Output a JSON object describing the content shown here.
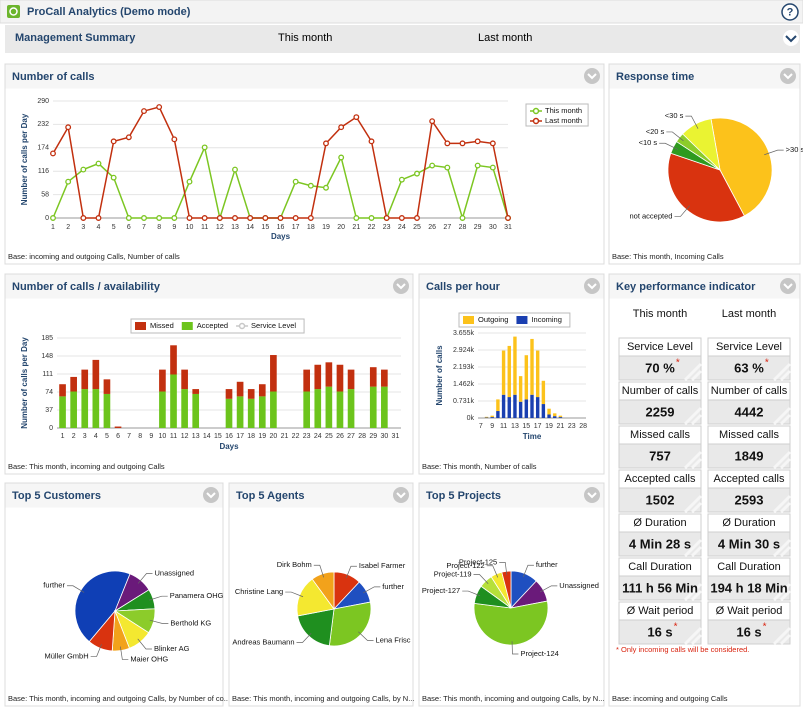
{
  "header": {
    "title": "ProCall Analytics (Demo mode)",
    "help": "?"
  },
  "nav": {
    "title": "Management Summary",
    "tabs": [
      "This month",
      "Last month"
    ]
  },
  "charts": [
    {
      "type": "line",
      "title": "Number of calls",
      "y_label": "Number of calls per Day",
      "x_label": "Days",
      "footnote": "Base: incoming and outgoing Calls, Number of calls",
      "categories": [
        "1",
        "2",
        "3",
        "4",
        "5",
        "6",
        "7",
        "8",
        "9",
        "10",
        "11",
        "12",
        "13",
        "14",
        "15",
        "16",
        "17",
        "18",
        "19",
        "20",
        "21",
        "22",
        "23",
        "24",
        "25",
        "26",
        "27",
        "28",
        "29",
        "30",
        "31"
      ],
      "ylim": [
        0,
        290
      ],
      "yticks": [
        0,
        58,
        116,
        174,
        232,
        290
      ],
      "grid": true,
      "series": [
        {
          "name": "This month",
          "color": "#7cc622",
          "values": [
            0,
            90,
            120,
            135,
            100,
            0,
            0,
            0,
            0,
            90,
            175,
            0,
            120,
            0,
            0,
            0,
            90,
            80,
            75,
            150,
            0,
            0,
            0,
            95,
            110,
            130,
            125,
            0,
            130,
            125,
            0
          ]
        },
        {
          "name": "Last month",
          "color": "#c2300f",
          "values": [
            160,
            225,
            0,
            0,
            190,
            200,
            265,
            275,
            195,
            0,
            0,
            0,
            0,
            0,
            0,
            0,
            0,
            0,
            185,
            225,
            250,
            190,
            0,
            0,
            0,
            240,
            185,
            185,
            190,
            185,
            0
          ]
        }
      ]
    },
    {
      "type": "pie",
      "title": "Response time",
      "footnote": "Base: This month, Incoming Calls",
      "categories": [
        ">30 s",
        "not accepted",
        "<10 s",
        "<20 s",
        "<30 s"
      ],
      "values": [
        45,
        38,
        4,
        3,
        10
      ],
      "colors": [
        "#fcc21b",
        "#d9330f",
        "#2e9a1f",
        "#8ccc2a",
        "#eaf332"
      ]
    },
    {
      "type": "bar",
      "title": "Number of calls / availability",
      "y_label": "Number of calls per Day",
      "x_label": "Days",
      "footnote": "Base: This month, incoming and outgoing Calls",
      "categories": [
        "1",
        "2",
        "3",
        "4",
        "5",
        "6",
        "7",
        "8",
        "9",
        "10",
        "11",
        "12",
        "13",
        "14",
        "15",
        "16",
        "17",
        "18",
        "19",
        "20",
        "21",
        "22",
        "23",
        "24",
        "25",
        "26",
        "27",
        "28",
        "29",
        "30",
        "31"
      ],
      "ylim": [
        0,
        185
      ],
      "yticks": [
        0,
        37,
        74,
        111,
        148,
        185
      ],
      "grid": true,
      "series": [
        {
          "name": "Missed",
          "color": "#c2300f",
          "values": [
            25,
            30,
            40,
            60,
            30,
            3,
            0,
            0,
            0,
            45,
            60,
            40,
            10,
            0,
            0,
            20,
            30,
            20,
            25,
            75,
            0,
            0,
            45,
            50,
            50,
            55,
            40,
            0,
            40,
            35,
            0
          ]
        },
        {
          "name": "Accepted",
          "color": "#6cc41c",
          "values": [
            65,
            75,
            80,
            80,
            70,
            0,
            0,
            0,
            0,
            75,
            110,
            80,
            70,
            0,
            0,
            60,
            65,
            60,
            65,
            75,
            0,
            0,
            75,
            80,
            85,
            75,
            80,
            0,
            85,
            85,
            0
          ]
        },
        {
          "name": "Service Level",
          "color": "#c8c8c8",
          "type": "line",
          "values": [
            null,
            null,
            null,
            null,
            null,
            null,
            null,
            null,
            null,
            null,
            null,
            null,
            null,
            null,
            null,
            null,
            null,
            null,
            null,
            null,
            null,
            null,
            null,
            null,
            null,
            null,
            null,
            null,
            null,
            null,
            null
          ]
        }
      ]
    },
    {
      "type": "bar",
      "title": "Calls per hour",
      "y_label": "Number of calls",
      "x_label": "Time",
      "footnote": "Base: This month, Number of calls",
      "categories": [
        "7",
        null,
        "9",
        null,
        "11",
        null,
        "13",
        null,
        "15",
        null,
        "17",
        null,
        "19",
        null,
        "21",
        null,
        "23",
        null,
        "28"
      ],
      "ylim": [
        0,
        3655
      ],
      "yticks": [
        {
          "value": 0,
          "label": "0k"
        },
        {
          "value": 731,
          "label": "0.731k"
        },
        {
          "value": 1462,
          "label": "1.462k"
        },
        {
          "value": 2193,
          "label": "2.193k"
        },
        {
          "value": 2924,
          "label": "2.924k"
        },
        {
          "value": 3655,
          "label": "3.655k"
        }
      ],
      "grid": true,
      "series": [
        {
          "name": "Outgoing",
          "color": "#fcc21b",
          "values": [
            0,
            30,
            60,
            500,
            1900,
            2200,
            2500,
            1100,
            1900,
            2400,
            2000,
            1000,
            250,
            120,
            60,
            0,
            0,
            0,
            0
          ]
        },
        {
          "name": "Incoming",
          "color": "#1a3fb0",
          "values": [
            0,
            20,
            40,
            300,
            1000,
            900,
            1000,
            700,
            800,
            1000,
            900,
            600,
            150,
            80,
            40,
            0,
            0,
            0,
            0
          ]
        }
      ]
    },
    {
      "type": "pie",
      "title": "Top 5 Customers",
      "footnote": "Base: This month, incoming and outgoing Calls, by Number of co...",
      "categories": [
        "further",
        "Unassigned",
        "Panamera OHG",
        "Berthold KG",
        "Blinker AG",
        "Maier OHG",
        "Müller GmbH"
      ],
      "values": [
        45,
        10,
        8,
        10,
        10,
        7,
        10
      ],
      "colors": [
        "#0f3fb5",
        "#6a1a7a",
        "#1f8f1f",
        "#8ccc2a",
        "#f4e830",
        "#f2a21b",
        "#d9330f"
      ]
    },
    {
      "type": "pie",
      "title": "Top 5 Agents",
      "footnote": "Base: This month, incoming and outgoing Calls, by N...",
      "categories": [
        "Isabel Farmer",
        "further",
        "Lena Frisc",
        "Andreas Baumann",
        "Christine Lang",
        "Dirk Bohm"
      ],
      "values": [
        12,
        10,
        30,
        20,
        18,
        10
      ],
      "colors": [
        "#d9330f",
        "#1f4fc0",
        "#7cc622",
        "#1f8f1f",
        "#f4e830",
        "#f2a21b"
      ]
    },
    {
      "type": "pie",
      "title": "Top 5 Projects",
      "footnote": "Base: This month, incoming and outgoing Calls, by N...",
      "categories": [
        "further",
        "Unassigned",
        "Project-124",
        "Project-127",
        "Project-119",
        "Project-122",
        "Project-125"
      ],
      "values": [
        12,
        10,
        55,
        8,
        6,
        5,
        4
      ],
      "colors": [
        "#1f4fc0",
        "#6a1a7a",
        "#7cc622",
        "#1f8f1f",
        "#b6e03a",
        "#f4e830",
        "#d9330f"
      ]
    }
  ],
  "kpi": {
    "title": "Key performance indicator",
    "columns": [
      "This month",
      "Last month"
    ],
    "rows": [
      {
        "label": "Service Level",
        "values": [
          "70 %",
          "63 %"
        ],
        "star": "*"
      },
      {
        "label": "Number of calls",
        "values": [
          "2259",
          "4442"
        ]
      },
      {
        "label": "Missed calls",
        "values": [
          "757",
          "1849"
        ]
      },
      {
        "label": "Accepted calls",
        "values": [
          "1502",
          "2593"
        ]
      },
      {
        "label": "Ø Duration",
        "values": [
          "4 Min 28 s",
          "4 Min 30 s"
        ]
      },
      {
        "label": "Call Duration",
        "values": [
          "111 h 56 Min",
          "194 h 18 Min"
        ]
      },
      {
        "label": "Ø Wait period",
        "values": [
          "16 s",
          "16 s"
        ],
        "star": "*"
      }
    ],
    "note": "* Only incoming calls will be considered.",
    "footnote": "Base: incoming and outgoing Calls"
  }
}
